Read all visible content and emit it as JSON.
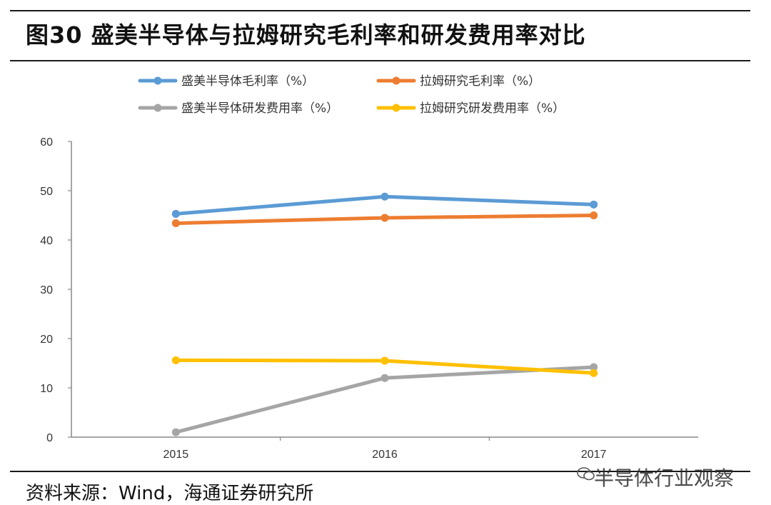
{
  "figure": {
    "title": "图30 盛美半导体与拉姆研究毛利率和研发费用率对比",
    "source": "资料来源：Wind，海通证券研究所",
    "watermark": "半导体行业观察"
  },
  "chart_data": {
    "type": "line",
    "title": "",
    "xlabel": "",
    "ylabel": "",
    "categories": [
      "2015",
      "2016",
      "2017"
    ],
    "ylim": [
      0,
      60
    ],
    "yticks": [
      0,
      10,
      20,
      30,
      40,
      50,
      60
    ],
    "grid": false,
    "legend_position": "top",
    "series": [
      {
        "name": "盛美半导体毛利率（%）",
        "color": "#5b9bd5",
        "values": [
          45.3,
          48.8,
          47.2
        ]
      },
      {
        "name": "拉姆研究毛利率（%）",
        "color": "#ed7d31",
        "values": [
          43.4,
          44.5,
          45.0
        ]
      },
      {
        "name": "盛美半导体研发费用率（%）",
        "color": "#a5a5a5",
        "values": [
          1.0,
          12.0,
          14.2
        ]
      },
      {
        "name": "拉姆研究研发费用率（%）",
        "color": "#ffc000",
        "values": [
          15.6,
          15.5,
          13.0
        ]
      }
    ]
  }
}
